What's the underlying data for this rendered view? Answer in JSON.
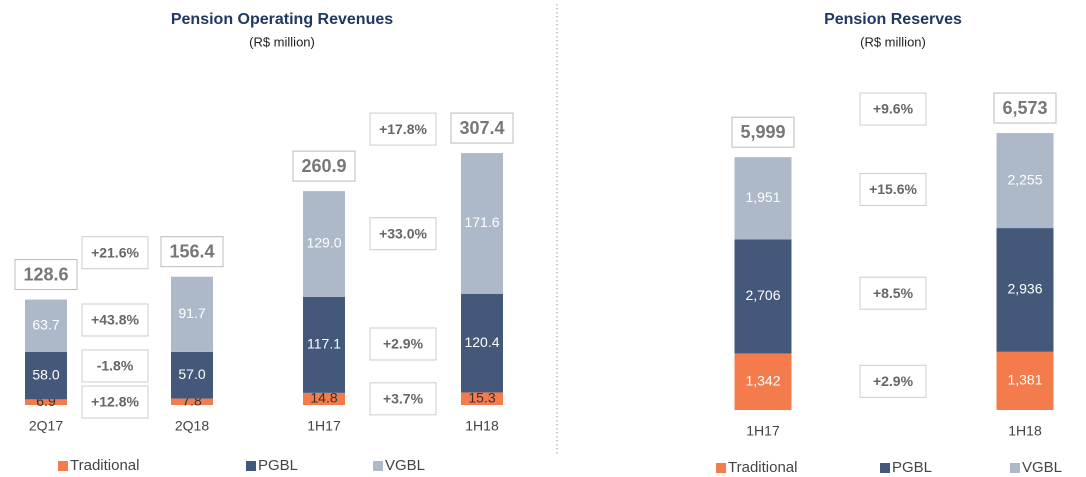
{
  "chart_data": [
    {
      "type": "bar",
      "stacked": true,
      "title": "Pension Operating Revenues",
      "subtitle": "(R$ million)",
      "categories": [
        "2Q17",
        "2Q18",
        "1H17",
        "1H18"
      ],
      "series": [
        {
          "name": "Traditional",
          "color": "#f47c4c",
          "values": [
            6.9,
            7.8,
            14.8,
            15.3
          ]
        },
        {
          "name": "PGBL",
          "color": "#44597a",
          "values": [
            58.0,
            57.0,
            117.1,
            120.4
          ],
          "value_labels": [
            "58.0",
            "57.0",
            "117.1",
            "120.4"
          ]
        },
        {
          "name": "VGBL",
          "color": "#adb9c9",
          "values": [
            63.7,
            91.7,
            129.0,
            171.6
          ],
          "value_labels": [
            "63.7",
            "91.7",
            "129.0",
            "171.6"
          ]
        }
      ],
      "totals": [
        128.6,
        156.4,
        260.9,
        307.4
      ],
      "growth": [
        {
          "total": {
            "value": 21.6,
            "label": "+21.6%"
          },
          "series": [
            {
              "value": 12.8,
              "label": "+12.8%"
            },
            {
              "value": -1.8,
              "label": "-1.8%"
            },
            {
              "value": 43.8,
              "label": "+43.8%"
            }
          ]
        },
        {
          "total": {
            "value": 17.8,
            "label": "+17.8%"
          },
          "series": [
            {
              "value": 3.7,
              "label": "+3.7%"
            },
            {
              "value": 2.9,
              "label": "+2.9%"
            },
            {
              "value": 33.0,
              "label": "+33.0%"
            }
          ]
        }
      ]
    },
    {
      "type": "bar",
      "stacked": true,
      "title": "Pension Reserves",
      "subtitle": "(R$ million)",
      "categories": [
        "1H17",
        "1H18"
      ],
      "series": [
        {
          "name": "Traditional",
          "color": "#f47c4c",
          "values": [
            1342,
            1381
          ],
          "value_labels": [
            "1,342",
            "1,381"
          ]
        },
        {
          "name": "PGBL",
          "color": "#44597a",
          "values": [
            2706,
            2936
          ],
          "value_labels": [
            "2,706",
            "2,936"
          ]
        },
        {
          "name": "VGBL",
          "color": "#adb9c9",
          "values": [
            1951,
            2255
          ],
          "value_labels": [
            "1,951",
            "2,255"
          ]
        }
      ],
      "totals": [
        5999,
        6573
      ],
      "totals_labels": [
        "5,999",
        "6,573"
      ],
      "growth": [
        {
          "total": {
            "value": 9.6,
            "label": "+9.6%"
          },
          "series": [
            {
              "value": 2.9,
              "label": "+2.9%"
            },
            {
              "value": 8.5,
              "label": "+8.5%"
            },
            {
              "value": 15.6,
              "label": "+15.6%"
            }
          ]
        }
      ]
    }
  ]
}
